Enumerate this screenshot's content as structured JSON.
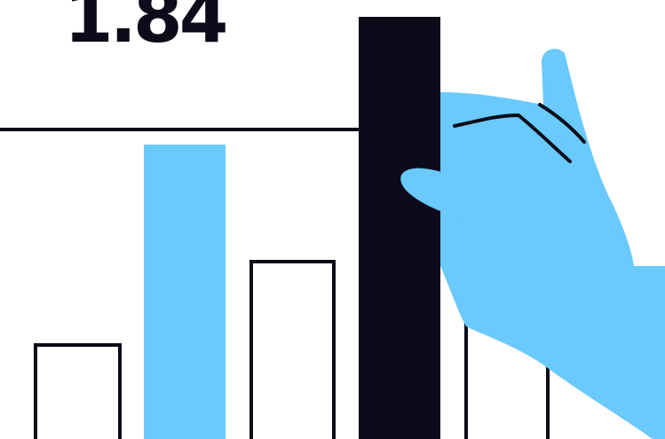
{
  "illustration": {
    "value_label": "1.84",
    "bar_count": 5,
    "colors": {
      "ink": "#0b0b1a",
      "accent": "#6ac9fd",
      "background": "#ffffff",
      "outline_fill": "#ffffff"
    },
    "bars": [
      {
        "style": "outline"
      },
      {
        "style": "accent"
      },
      {
        "style": "outline"
      },
      {
        "style": "dark"
      },
      {
        "style": "outline"
      }
    ],
    "icons": [
      "hand-icon"
    ]
  }
}
